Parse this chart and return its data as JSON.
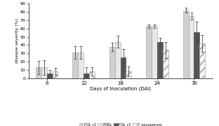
{
  "days": [
    6,
    12,
    18,
    24,
    30
  ],
  "series": {
    "FOL r1": {
      "values": [
        13,
        31,
        38,
        63,
        82
      ],
      "errors": [
        8,
        8,
        5,
        2,
        3
      ],
      "color": "#d0d0d0",
      "hatch": "",
      "edgecolor": "#999999"
    },
    "FORL": {
      "values": [
        13,
        31,
        44,
        63,
        75
      ],
      "errors": [
        9,
        8,
        7,
        2,
        4
      ],
      "color": "#e8e8e8",
      "hatch": "",
      "edgecolor": "#999999"
    },
    "FOL r3": {
      "values": [
        6,
        6,
        25,
        44,
        56
      ],
      "errors": [
        4,
        7,
        10,
        5,
        12
      ],
      "color": "#555555",
      "hatch": "",
      "edgecolor": "#333333"
    },
    "F. oxysporum": {
      "values": [
        8,
        8,
        8,
        34,
        42
      ],
      "errors": [
        4,
        5,
        6,
        10,
        10
      ],
      "color": "#f5f5f5",
      "hatch": "///",
      "edgecolor": "#999999"
    }
  },
  "xlabel": "Days of Inoculation (DAI)",
  "ylabel": "disease severity (%)",
  "ylim": [
    0,
    90
  ],
  "yticks": [
    0,
    10,
    20,
    30,
    40,
    50,
    60,
    70,
    80,
    90
  ],
  "bar_width": 0.15,
  "background_color": "#ffffff",
  "legend_labels": [
    "FOL r1",
    "FORL",
    "FOL r3",
    "F. oxysporum"
  ],
  "legend_colors": [
    "#d0d0d0",
    "#e8e8e8",
    "#555555",
    "#f5f5f5"
  ],
  "legend_hatches": [
    "",
    "",
    "",
    "///"
  ],
  "legend_edgecolors": [
    "#999999",
    "#999999",
    "#333333",
    "#999999"
  ]
}
